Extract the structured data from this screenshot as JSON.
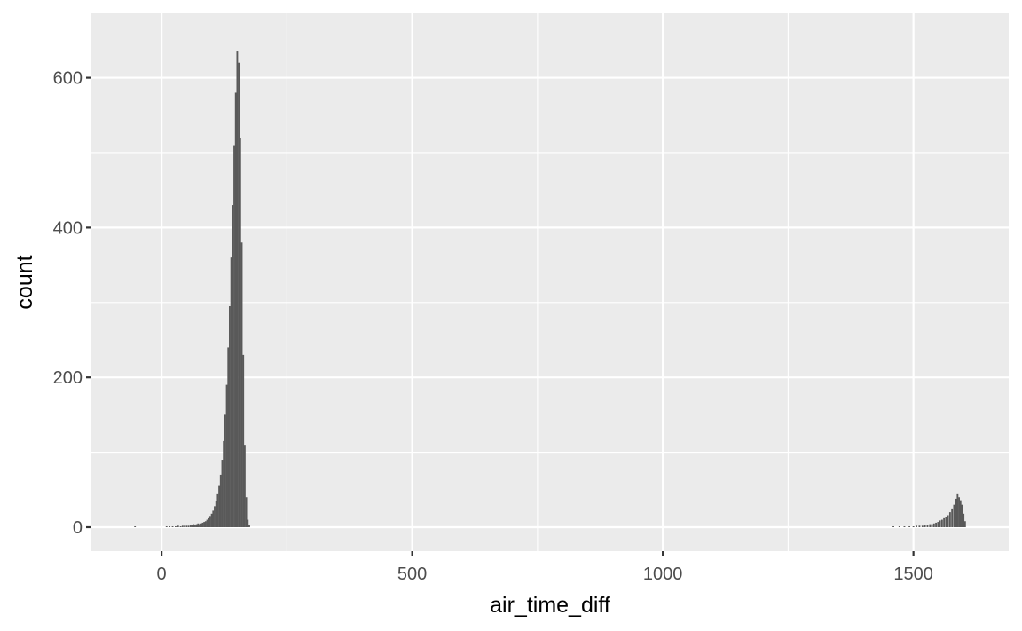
{
  "chart_data": {
    "type": "bar",
    "subtype": "histogram",
    "xlabel": "air_time_diff",
    "ylabel": "count",
    "xlim": [
      -140,
      1690
    ],
    "ylim": [
      -32,
      686
    ],
    "x_ticks": [
      0,
      500,
      1000,
      1500
    ],
    "x_tick_labels": [
      "0",
      "500",
      "1000",
      "1500"
    ],
    "x_minor_ticks": [
      250,
      750,
      1250
    ],
    "y_ticks": [
      0,
      200,
      400,
      600
    ],
    "y_tick_labels": [
      "0",
      "200",
      "400",
      "600"
    ],
    "y_minor_ticks": [
      100,
      300,
      500
    ],
    "grid": true,
    "colors": {
      "panel": "#ebebeb",
      "bars": "#595959",
      "grid": "#ffffff"
    },
    "bin_width": 3.3,
    "bins": [
      {
        "x": -53,
        "count": 1
      },
      {
        "x": 10,
        "count": 1
      },
      {
        "x": 16,
        "count": 1
      },
      {
        "x": 22,
        "count": 1
      },
      {
        "x": 28,
        "count": 1
      },
      {
        "x": 33,
        "count": 2
      },
      {
        "x": 38,
        "count": 1
      },
      {
        "x": 42,
        "count": 2
      },
      {
        "x": 46,
        "count": 2
      },
      {
        "x": 50,
        "count": 2
      },
      {
        "x": 54,
        "count": 2
      },
      {
        "x": 58,
        "count": 3
      },
      {
        "x": 61,
        "count": 3
      },
      {
        "x": 64,
        "count": 4
      },
      {
        "x": 67,
        "count": 3
      },
      {
        "x": 70,
        "count": 4
      },
      {
        "x": 73,
        "count": 5
      },
      {
        "x": 76,
        "count": 4
      },
      {
        "x": 79,
        "count": 5
      },
      {
        "x": 82,
        "count": 6
      },
      {
        "x": 85,
        "count": 7
      },
      {
        "x": 88,
        "count": 8
      },
      {
        "x": 91,
        "count": 10
      },
      {
        "x": 94,
        "count": 12
      },
      {
        "x": 97,
        "count": 15
      },
      {
        "x": 100,
        "count": 18
      },
      {
        "x": 103,
        "count": 22
      },
      {
        "x": 106,
        "count": 28
      },
      {
        "x": 109,
        "count": 35
      },
      {
        "x": 112,
        "count": 44
      },
      {
        "x": 115,
        "count": 55
      },
      {
        "x": 118,
        "count": 70
      },
      {
        "x": 121,
        "count": 90
      },
      {
        "x": 124,
        "count": 115
      },
      {
        "x": 127,
        "count": 150
      },
      {
        "x": 130,
        "count": 190
      },
      {
        "x": 133,
        "count": 240
      },
      {
        "x": 136,
        "count": 295
      },
      {
        "x": 139,
        "count": 360
      },
      {
        "x": 142,
        "count": 430
      },
      {
        "x": 145,
        "count": 510
      },
      {
        "x": 148,
        "count": 580
      },
      {
        "x": 151,
        "count": 635
      },
      {
        "x": 154,
        "count": 620
      },
      {
        "x": 157,
        "count": 520
      },
      {
        "x": 160,
        "count": 380
      },
      {
        "x": 163,
        "count": 230
      },
      {
        "x": 166,
        "count": 110
      },
      {
        "x": 169,
        "count": 40
      },
      {
        "x": 172,
        "count": 10
      },
      {
        "x": 175,
        "count": 3
      },
      {
        "x": 1460,
        "count": 1
      },
      {
        "x": 1472,
        "count": 1
      },
      {
        "x": 1482,
        "count": 1
      },
      {
        "x": 1492,
        "count": 1
      },
      {
        "x": 1500,
        "count": 1
      },
      {
        "x": 1506,
        "count": 2
      },
      {
        "x": 1512,
        "count": 2
      },
      {
        "x": 1518,
        "count": 2
      },
      {
        "x": 1523,
        "count": 3
      },
      {
        "x": 1528,
        "count": 3
      },
      {
        "x": 1533,
        "count": 4
      },
      {
        "x": 1537,
        "count": 4
      },
      {
        "x": 1541,
        "count": 5
      },
      {
        "x": 1545,
        "count": 6
      },
      {
        "x": 1549,
        "count": 7
      },
      {
        "x": 1553,
        "count": 9
      },
      {
        "x": 1557,
        "count": 10
      },
      {
        "x": 1561,
        "count": 12
      },
      {
        "x": 1565,
        "count": 14
      },
      {
        "x": 1569,
        "count": 16
      },
      {
        "x": 1573,
        "count": 20
      },
      {
        "x": 1577,
        "count": 25
      },
      {
        "x": 1581,
        "count": 30
      },
      {
        "x": 1585,
        "count": 38
      },
      {
        "x": 1588,
        "count": 44
      },
      {
        "x": 1591,
        "count": 40
      },
      {
        "x": 1594,
        "count": 36
      },
      {
        "x": 1597,
        "count": 30
      },
      {
        "x": 1600,
        "count": 18
      },
      {
        "x": 1603,
        "count": 8
      }
    ]
  }
}
